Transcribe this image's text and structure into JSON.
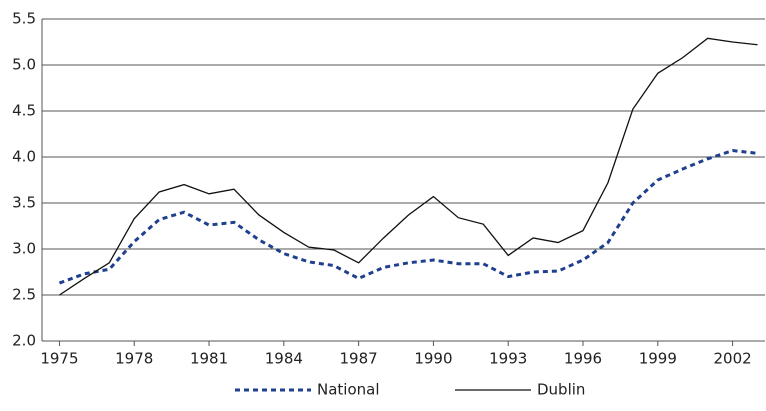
{
  "chart_data": {
    "type": "line",
    "x": [
      1975,
      1976,
      1977,
      1978,
      1979,
      1980,
      1981,
      1982,
      1983,
      1984,
      1985,
      1986,
      1987,
      1988,
      1989,
      1990,
      1991,
      1992,
      1993,
      1994,
      1995,
      1996,
      1997,
      1998,
      1999,
      2000,
      2001,
      2002,
      2003
    ],
    "series": [
      {
        "name": "National",
        "color": "#1f3f8f",
        "dash": "dotted",
        "values": [
          2.63,
          2.73,
          2.78,
          3.08,
          3.32,
          3.4,
          3.26,
          3.29,
          3.1,
          2.95,
          2.86,
          2.82,
          2.68,
          2.8,
          2.85,
          2.88,
          2.84,
          2.84,
          2.7,
          2.75,
          2.76,
          2.88,
          3.07,
          3.5,
          3.75,
          3.87,
          3.98,
          4.07,
          4.04
        ]
      },
      {
        "name": "Dublin",
        "color": "#111111",
        "dash": "solid",
        "values": [
          2.5,
          2.68,
          2.85,
          3.33,
          3.62,
          3.7,
          3.6,
          3.65,
          3.37,
          3.18,
          3.02,
          2.99,
          2.85,
          3.12,
          3.37,
          3.57,
          3.34,
          3.27,
          2.93,
          3.12,
          3.07,
          3.2,
          3.72,
          4.52,
          4.91,
          5.08,
          5.29,
          5.25,
          5.22
        ]
      }
    ],
    "xlim": [
      1974.3,
      2003.3
    ],
    "xticks": [
      1975,
      1978,
      1981,
      1984,
      1987,
      1990,
      1993,
      1996,
      1999,
      2002
    ],
    "ylim": [
      2.0,
      5.5
    ],
    "yticks": [
      {
        "value": 2.0,
        "label": "2.0"
      },
      {
        "value": 2.5,
        "label": "2.5"
      },
      {
        "value": 3.0,
        "label": "3.0"
      },
      {
        "value": 3.5,
        "label": "3.5"
      },
      {
        "value": 4.0,
        "label": "4.0"
      },
      {
        "value": 4.5,
        "label": "4.5"
      },
      {
        "value": 5.0,
        "label": "5.0"
      },
      {
        "value": 5.5,
        "label": "5.5"
      }
    ],
    "grid": true,
    "legend": "bottom"
  }
}
